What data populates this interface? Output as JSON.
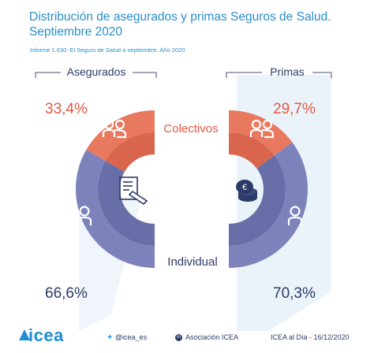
{
  "header": {
    "title_line1": "Distribución de asegurados y primas Seguros de Salud.",
    "title_line2": "Septiembre 2020",
    "subtitle": "Informe 1.630: El Seguro de Salud a septiembre. Año 2020"
  },
  "chart_data": {
    "type": "pie",
    "categories": [
      "Colectivos",
      "Individual"
    ],
    "series": [
      {
        "name": "Asegurados",
        "values": [
          33.4,
          66.6
        ],
        "labels": [
          "33,4%",
          "66,6%"
        ]
      },
      {
        "name": "Primas",
        "values": [
          29.7,
          70.3
        ],
        "labels": [
          "29,7%",
          "70,3%"
        ]
      }
    ],
    "legend": "category labels inside chart",
    "colors": {
      "Colectivos": "#e8795f",
      "Individual": "#7d82bb"
    }
  },
  "icons": {
    "left_center": "contract-signing-icon",
    "right_center": "coins-icon",
    "segments": "people-icon"
  },
  "footer": {
    "logo": "icea",
    "twitter": "@icea_es",
    "linkedin": "Asociación ICEA",
    "date": "ICEA al Día - 16/12/2020"
  },
  "colors": {
    "title": "#2a8fc9",
    "colectivos": "#e8795f",
    "individual": "#7d82bb",
    "individual_inner": "#686ea8",
    "colectivos_inner": "#d9654d",
    "percent_orange": "#e8573f",
    "label_navy": "#2b3a67"
  }
}
